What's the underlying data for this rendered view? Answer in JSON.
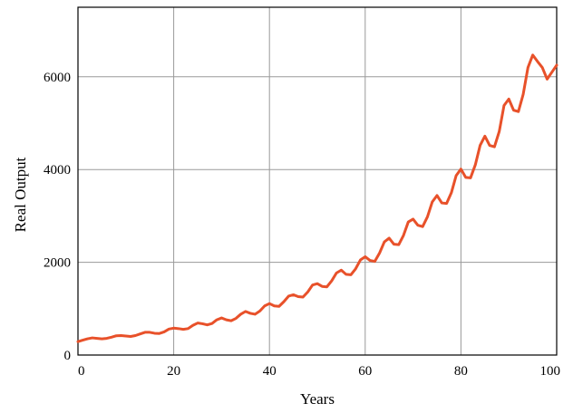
{
  "chart_data": {
    "type": "line",
    "title": "",
    "xlabel": "Years",
    "ylabel": "Real Output",
    "xlim": [
      0,
      100
    ],
    "ylim": [
      0,
      7500
    ],
    "x_ticks": [
      0,
      20,
      40,
      60,
      80,
      100
    ],
    "y_ticks": [
      0,
      2000,
      4000,
      6000
    ],
    "x_tick_labels": [
      "0",
      "20",
      "40",
      "60",
      "80",
      "100"
    ],
    "y_tick_labels": [
      "0",
      "2000",
      "4000",
      "6000"
    ],
    "grid": true,
    "legend": "none",
    "line_color": "#e8512a",
    "series": [
      {
        "x": [
          0,
          1,
          2,
          3,
          4,
          5,
          6,
          7,
          8,
          9,
          10,
          11,
          12,
          13,
          14,
          15,
          16,
          17,
          18,
          19,
          20,
          21,
          22,
          23,
          24,
          25,
          26,
          27,
          28,
          29,
          30,
          31,
          32,
          33,
          34,
          35,
          36,
          37,
          38,
          39,
          40,
          41,
          42,
          43,
          44,
          45,
          46,
          47,
          48,
          49,
          50,
          51,
          52,
          53,
          54,
          55,
          56,
          57,
          58,
          59,
          60,
          61,
          62,
          63,
          64,
          65,
          66,
          67,
          68,
          69,
          70,
          71,
          72,
          73,
          74,
          75,
          76,
          77,
          78,
          79,
          80,
          81,
          82,
          83,
          84,
          85,
          86,
          87,
          88,
          89,
          90,
          91,
          92,
          93,
          94,
          95,
          96,
          97,
          98,
          99,
          100
        ],
        "values": [
          290,
          320,
          350,
          370,
          360,
          350,
          360,
          385,
          415,
          420,
          410,
          400,
          420,
          455,
          490,
          490,
          470,
          465,
          500,
          560,
          580,
          570,
          555,
          570,
          640,
          690,
          675,
          650,
          680,
          760,
          800,
          760,
          740,
          790,
          880,
          940,
          900,
          880,
          950,
          1060,
          1110,
          1060,
          1050,
          1150,
          1270,
          1300,
          1260,
          1250,
          1360,
          1510,
          1540,
          1480,
          1470,
          1600,
          1770,
          1830,
          1740,
          1730,
          1860,
          2050,
          2120,
          2040,
          2020,
          2200,
          2440,
          2520,
          2390,
          2380,
          2580,
          2870,
          2930,
          2800,
          2770,
          2980,
          3300,
          3440,
          3280,
          3270,
          3500,
          3870,
          4010,
          3830,
          3820,
          4100,
          4520,
          4720,
          4520,
          4490,
          4820,
          5380,
          5520,
          5280,
          5250,
          5620,
          6200,
          6470,
          6330,
          6200,
          5950,
          6100,
          6250
        ]
      }
    ]
  }
}
